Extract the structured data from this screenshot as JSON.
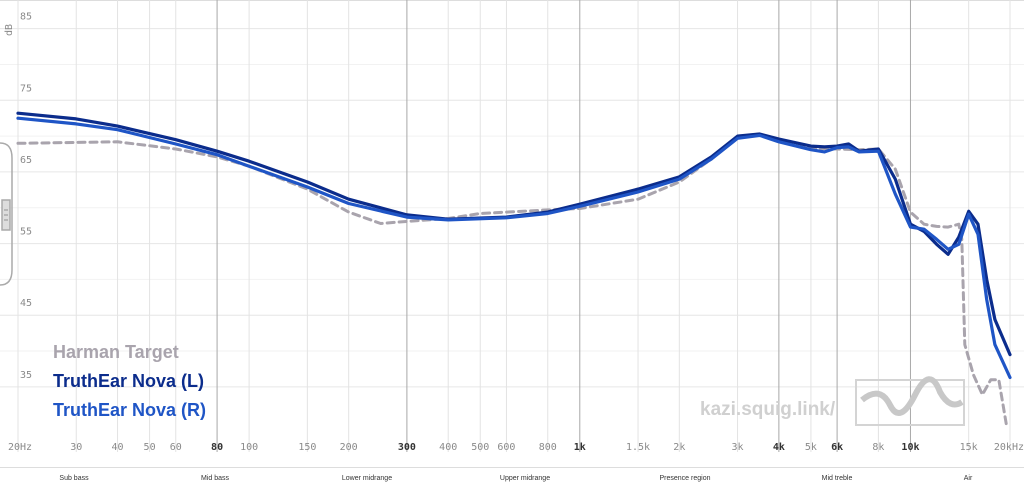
{
  "chart_data": {
    "type": "line",
    "y_label": "dB",
    "watermark": "kazi.squig.link/",
    "log_x": true,
    "xlim": [
      20,
      20000
    ],
    "ylim": [
      28,
      89
    ],
    "yticks": [
      35,
      45,
      55,
      65,
      75,
      85
    ],
    "minor_yticks": [
      40,
      50,
      60,
      70,
      80
    ],
    "xticks": [
      {
        "value": 20,
        "label": "20Hz"
      },
      30,
      40,
      50,
      60,
      80,
      100,
      150,
      200,
      300,
      400,
      500,
      600,
      800,
      {
        "value": 1000,
        "label": "1k"
      },
      {
        "value": 1500,
        "label": "1.5k"
      },
      {
        "value": 2000,
        "label": "2k"
      },
      {
        "value": 3000,
        "label": "3k"
      },
      {
        "value": 4000,
        "label": "4k"
      },
      {
        "value": 5000,
        "label": "5k"
      },
      {
        "value": 6000,
        "label": "6k"
      },
      {
        "value": 8000,
        "label": "8k"
      },
      {
        "value": 10000,
        "label": "10k"
      },
      {
        "value": 15000,
        "label": "15k"
      },
      {
        "value": 20000,
        "label": "20kHz"
      }
    ],
    "emphasized_xticks": [
      80,
      300,
      1000,
      4000,
      6000,
      10000
    ],
    "regions": [
      "Sub bass",
      "Mid bass",
      "Lower midrange",
      "Upper midrange",
      "Presence region",
      "Mid treble",
      "Air"
    ],
    "grid": true,
    "legend": "lower left",
    "series": [
      {
        "name": "Harman Target",
        "color": "#a9a4ad",
        "dashed": true,
        "x": [
          20,
          40,
          60,
          80,
          100,
          150,
          200,
          250,
          300,
          400,
          500,
          600,
          800,
          1000,
          1500,
          2000,
          2500,
          3000,
          3500,
          4000,
          5000,
          6000,
          7000,
          8000,
          9000,
          10000,
          11000,
          12000,
          13000,
          14000,
          14300,
          14600,
          15500,
          16500,
          17500,
          18500,
          19500
        ],
        "values": [
          69.0,
          69.2,
          68.2,
          67.1,
          65.8,
          62.6,
          59.4,
          57.8,
          58.1,
          58.5,
          59.2,
          59.4,
          59.7,
          59.9,
          61.2,
          63.6,
          66.8,
          69.9,
          70.3,
          69.3,
          68.3,
          68.2,
          68.1,
          68.2,
          65.4,
          59.4,
          57.7,
          57.4,
          57.3,
          57.7,
          55.6,
          40.9,
          36.7,
          33.9,
          36.0,
          36.0,
          29.7
        ]
      },
      {
        "name": "TruthEar Nova (L)",
        "color": "#0b2c8c",
        "dashed": false,
        "x": [
          20,
          30,
          40,
          60,
          80,
          100,
          150,
          200,
          300,
          400,
          600,
          800,
          1000,
          1500,
          2000,
          2500,
          3000,
          3500,
          4000,
          5000,
          5500,
          6000,
          6500,
          7000,
          8000,
          9000,
          10000,
          11000,
          12000,
          13000,
          14000,
          15000,
          16000,
          17000,
          18000,
          20000
        ],
        "values": [
          73.2,
          72.4,
          71.4,
          69.5,
          67.9,
          66.5,
          63.6,
          61.2,
          59.0,
          58.4,
          58.7,
          59.4,
          60.5,
          62.6,
          64.3,
          67.1,
          70.0,
          70.3,
          69.6,
          68.6,
          68.5,
          68.6,
          68.9,
          67.9,
          68.2,
          64.0,
          57.7,
          56.7,
          54.9,
          53.5,
          55.9,
          59.5,
          57.7,
          50.0,
          44.4,
          39.5
        ]
      },
      {
        "name": "TruthEar Nova (R)",
        "color": "#1f55c6",
        "dashed": false,
        "x": [
          20,
          30,
          40,
          60,
          80,
          100,
          150,
          200,
          300,
          400,
          600,
          800,
          1000,
          1500,
          2000,
          2500,
          3000,
          3500,
          4000,
          5000,
          5500,
          6000,
          6500,
          7000,
          8000,
          9000,
          10000,
          11000,
          12000,
          13000,
          14000,
          15000,
          16000,
          17000,
          18000,
          20000
        ],
        "values": [
          72.5,
          71.7,
          70.9,
          68.9,
          67.4,
          65.8,
          62.9,
          60.6,
          58.7,
          58.3,
          58.6,
          59.2,
          60.2,
          62.2,
          64.0,
          66.8,
          69.7,
          70.1,
          69.2,
          68.1,
          67.8,
          68.4,
          68.5,
          67.8,
          67.9,
          61.9,
          57.3,
          57.0,
          55.6,
          54.2,
          54.9,
          59.1,
          56.3,
          47.2,
          40.9,
          36.3
        ]
      }
    ]
  }
}
